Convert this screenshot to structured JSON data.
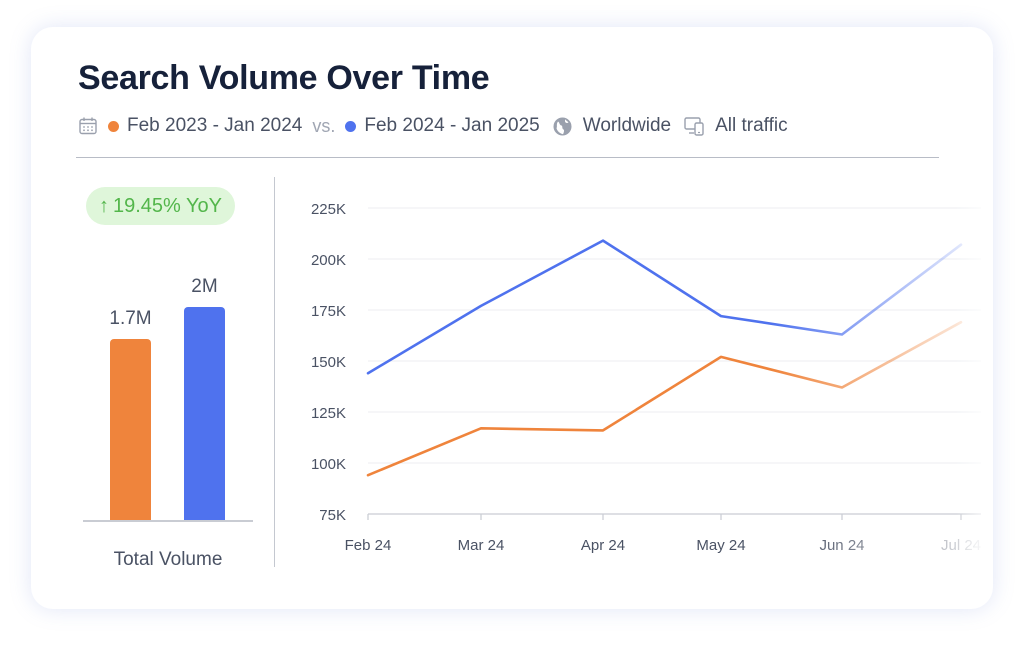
{
  "card": {
    "title": "Search Volume Over Time",
    "period_a": "Feb 2023 - Jan 2024",
    "vs": "vs.",
    "period_b": "Feb 2024 - Jan 2025",
    "region": "Worldwide",
    "traffic": "All traffic",
    "icons": [
      "calendar-icon",
      "globe-icon",
      "devices-icon"
    ]
  },
  "summary": {
    "yoy_arrow": "↑",
    "yoy": "19.45% YoY",
    "total_label": "Total Volume"
  },
  "colors": {
    "previous": "#ef843c",
    "current": "#4f72ee",
    "badge_bg": "#dff6da",
    "badge_text": "#53b64b"
  },
  "chart_data": [
    {
      "type": "bar",
      "categories": [
        "Feb 2023 - Jan 2024",
        "Feb 2024 - Jan 2025"
      ],
      "values": [
        1700000,
        2000000
      ],
      "value_labels": [
        "1.7M",
        "2M"
      ],
      "xlabel": "Total Volume",
      "ylim": [
        0,
        2000000
      ]
    },
    {
      "type": "line",
      "categories": [
        "Feb 24",
        "Mar 24",
        "Apr 24",
        "May 24",
        "Jun 24",
        "Jul 24"
      ],
      "series": [
        {
          "name": "Feb 2024 - Jan 2025",
          "values": [
            144000,
            177000,
            209000,
            172000,
            163000,
            207000
          ]
        },
        {
          "name": "Feb 2023 - Jan 2024",
          "values": [
            94000,
            117000,
            116000,
            152000,
            137000,
            169000
          ]
        }
      ],
      "y_ticks": [
        75000,
        100000,
        125000,
        150000,
        175000,
        200000,
        225000
      ],
      "y_tick_labels": [
        "75K",
        "100K",
        "125K",
        "150K",
        "175K",
        "200K",
        "225K"
      ],
      "ylim": [
        75000,
        225000
      ],
      "grid": true,
      "fade_right": true
    }
  ]
}
